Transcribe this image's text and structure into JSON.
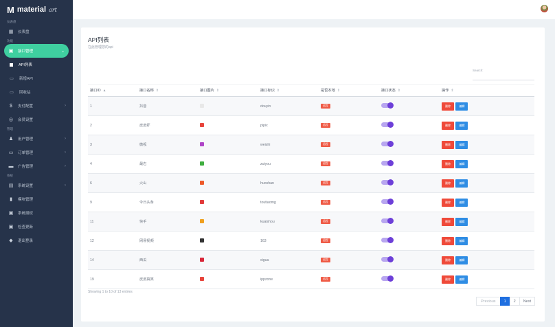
{
  "brand": {
    "logo": "M",
    "name": "material",
    "sub": "art"
  },
  "sidebar": {
    "sections": [
      {
        "label": "仪表盘",
        "items": [
          {
            "label": "仪表盘",
            "icon": "dashboard-icon"
          }
        ]
      },
      {
        "label": "功能",
        "items": [
          {
            "label": "接口管理",
            "icon": "api-icon",
            "active": true
          },
          {
            "label": "API列表",
            "sub": true,
            "current": true
          },
          {
            "label": "新增API",
            "sub": true
          },
          {
            "label": "回收站",
            "sub": true
          },
          {
            "label": "支付配置",
            "icon": "dollar-icon",
            "chev": true
          },
          {
            "label": "会员设置",
            "icon": "vip-icon"
          }
        ]
      },
      {
        "label": "管理",
        "items": [
          {
            "label": "用户管理",
            "icon": "users-icon",
            "chev": true
          },
          {
            "label": "订单管理",
            "icon": "order-icon",
            "chev": true
          },
          {
            "label": "广告管理",
            "icon": "ad-icon",
            "chev": true
          }
        ]
      },
      {
        "label": "系统",
        "items": [
          {
            "label": "系统设置",
            "icon": "settings-icon",
            "chev": true
          },
          {
            "label": "模块管理",
            "icon": "module-icon"
          },
          {
            "label": "系统授权",
            "icon": "license-icon"
          },
          {
            "label": "检查更新",
            "icon": "update-icon"
          },
          {
            "label": "退出登录",
            "icon": "logout-icon"
          }
        ]
      }
    ]
  },
  "page": {
    "title": "API列表",
    "subtitle": "在此管理您的api",
    "search_label": "Search:"
  },
  "table": {
    "headers": [
      "接口ID",
      "接口名称",
      "接口图片",
      "接口标识",
      "是否本地",
      "接口状态",
      "操作"
    ],
    "rows": [
      {
        "id": "1",
        "name": "抖音",
        "img": "#e8e8e8",
        "key": "douyin",
        "local": "远程"
      },
      {
        "id": "2",
        "name": "皮皮虾",
        "img": "#e8453c",
        "key": "pipix",
        "local": "远程"
      },
      {
        "id": "3",
        "name": "微视",
        "img": "#b046c8",
        "key": "weishi",
        "local": "远程"
      },
      {
        "id": "4",
        "name": "最右",
        "img": "#3fae3f",
        "key": "zuiyou",
        "local": "远程"
      },
      {
        "id": "6",
        "name": "火山",
        "img": "#ee5a2a",
        "key": "huoshan",
        "local": "远程"
      },
      {
        "id": "9",
        "name": "今日头条",
        "img": "#e23b3b",
        "key": "toutiaomg",
        "local": "远程"
      },
      {
        "id": "11",
        "name": "快手",
        "img": "#f0a020",
        "key": "kuaishou",
        "local": "远程"
      },
      {
        "id": "12",
        "name": "网易视频",
        "img": "#333333",
        "key": "163",
        "local": "远程"
      },
      {
        "id": "14",
        "name": "西瓜",
        "img": "#d9283a",
        "key": "xigua",
        "local": "远程"
      },
      {
        "id": "19",
        "name": "皮皮搞笑",
        "img": "#e8453c",
        "key": "ippzone",
        "local": "远程"
      }
    ],
    "delete_label": "删除",
    "edit_label": "编辑"
  },
  "footer": {
    "showing": "Showing 1 to 10 of 13 entries"
  },
  "pagination": {
    "prev": "Previous",
    "pages": [
      "1",
      "2"
    ],
    "current": "1",
    "next": "Next"
  },
  "colors": {
    "sidebar": "#26334a",
    "accent": "#3fcfa0",
    "toggle": "#6d3fd8",
    "delete": "#ef4a3a",
    "edit": "#2f8de4",
    "page_active": "#1f6fe0"
  }
}
